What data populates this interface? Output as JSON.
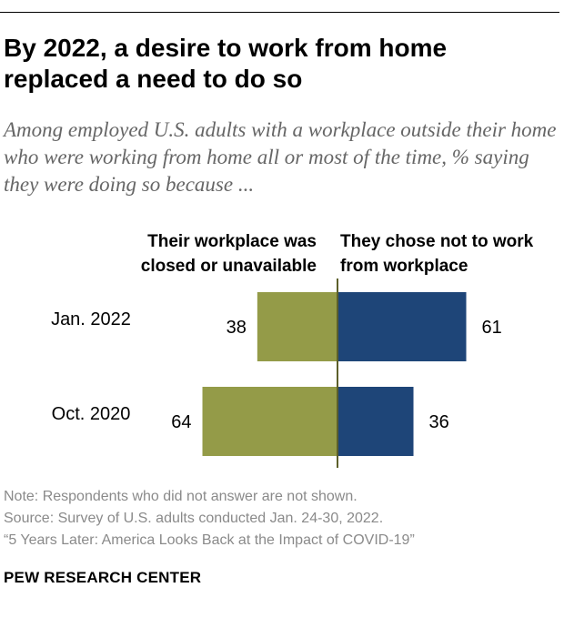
{
  "title": "By 2022, a desire to work from home replaced a need to do so",
  "subtitle": "Among employed U.S. adults with a workplace outside their home who were working from home all or most of the time, % saying they were doing so because ...",
  "notes": [
    "Note: Respondents who did not answer are not shown.",
    "Source: Survey of U.S. adults conducted Jan. 24-30, 2022.",
    "“5 Years Later: America Looks Back at the Impact of COVID-19”"
  ],
  "brand": "PEW RESEARCH CENTER",
  "chart_data": {
    "type": "bar",
    "orientation": "horizontal-diverging",
    "categories": [
      "Jan. 2022",
      "Oct. 2020"
    ],
    "series": [
      {
        "name": "Their workplace was closed or unavailable",
        "values": [
          38,
          64
        ],
        "color": "#949b48",
        "side": "left"
      },
      {
        "name": "They chose not to work from workplace",
        "values": [
          61,
          36
        ],
        "color": "#1e4578",
        "side": "right"
      }
    ],
    "legend_position": "top",
    "grid": false
  }
}
